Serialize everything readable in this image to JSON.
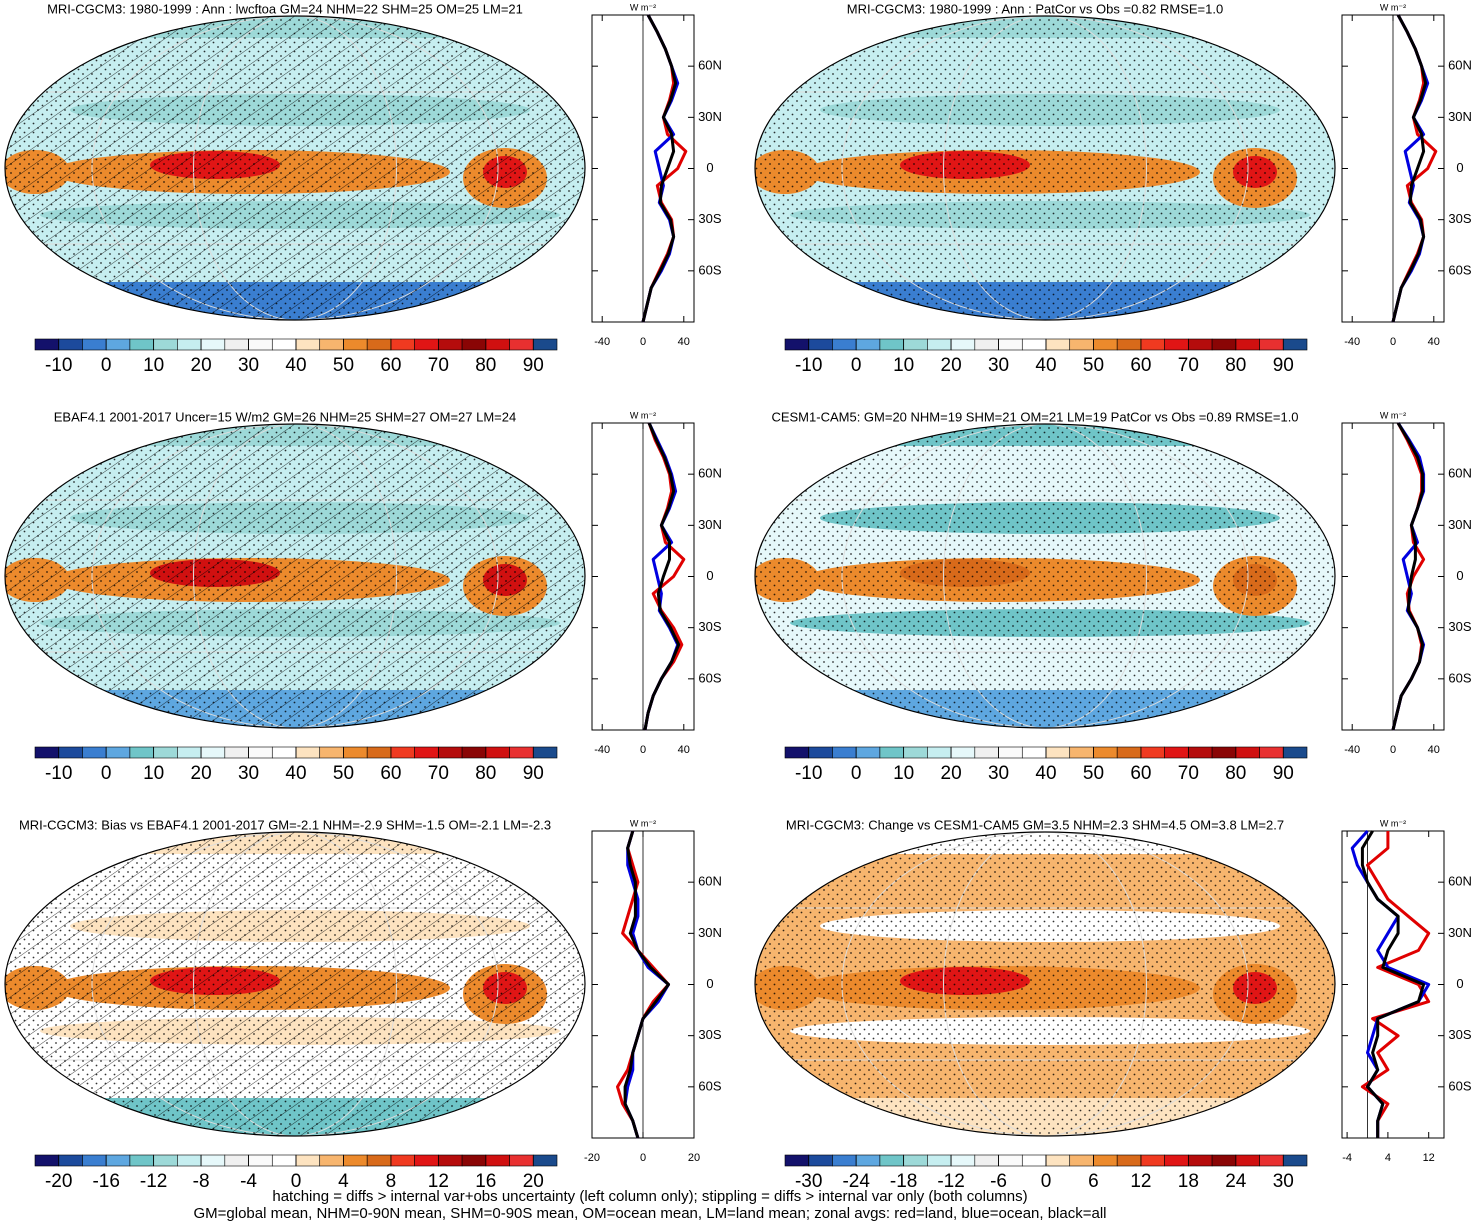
{
  "chart_data": [
    {
      "type": "map-zonal",
      "title": "MRI-CGCM3: 1980-1999 : Ann : lwcftoa GM=24 NHM=22 SHM=25 OM=25 LM=21",
      "unit": "W m⁻²",
      "colorbar": {
        "lim": [
          -15,
          95
        ],
        "ticks": [
          -10,
          0,
          10,
          20,
          30,
          40,
          50,
          60,
          70,
          80,
          90
        ],
        "colors": [
          "#13116b",
          "#1c4a9c",
          "#3a7ed0",
          "#5ea7e0",
          "#6fc5c8",
          "#9dd9d8",
          "#c6eef0",
          "#e6f8fa",
          "#f0f0f0",
          "#fafafa",
          "#ffffff",
          "#fde3c0",
          "#f7b56e",
          "#ec8a2c",
          "#d86a1a",
          "#f03a20",
          "#e01515",
          "#b50c0c",
          "#8a0505",
          "#d01010",
          "#e83030",
          "#1a4a8c"
        ]
      },
      "zonal": {
        "lat": [
          -90,
          -80,
          -70,
          -60,
          -50,
          -40,
          -30,
          -20,
          -10,
          0,
          10,
          20,
          30,
          40,
          50,
          60,
          70,
          80,
          90
        ],
        "xlim": [
          -50,
          50
        ],
        "xticks": [
          -40,
          0,
          40
        ],
        "ylim": [
          -90,
          90
        ],
        "yticks": [
          {
            "value": 60,
            "label": "60N"
          },
          {
            "value": 30,
            "label": "30N"
          },
          0,
          {
            "value": -30,
            "label": "30S"
          },
          {
            "value": -60,
            "label": "60S"
          }
        ],
        "series": [
          {
            "color": "#e00000",
            "values": [
              0,
              4,
              8,
              16,
              24,
              30,
              28,
              18,
              14,
              34,
              42,
              24,
              20,
              26,
              30,
              28,
              22,
              14,
              5
            ]
          },
          {
            "color": "#0000e0",
            "values": [
              0,
              4,
              8,
              18,
              26,
              30,
              26,
              16,
              20,
              16,
              12,
              30,
              20,
              28,
              34,
              28,
              22,
              14,
              5
            ]
          },
          {
            "color": "#000000",
            "values": [
              0,
              4,
              8,
              17,
              25,
              30,
              27,
              17,
              18,
              24,
              30,
              28,
              20,
              27,
              32,
              28,
              22,
              14,
              5
            ]
          }
        ]
      }
    },
    {
      "type": "map-zonal",
      "title": "MRI-CGCM3: 1980-1999 : Ann : PatCor vs Obs =0.82 RMSE=1.0",
      "unit": "W m⁻²",
      "colorbar": {
        "lim": [
          -15,
          95
        ],
        "ticks": [
          -10,
          0,
          10,
          20,
          30,
          40,
          50,
          60,
          70,
          80,
          90
        ],
        "colors": [
          "#13116b",
          "#1c4a9c",
          "#3a7ed0",
          "#5ea7e0",
          "#6fc5c8",
          "#9dd9d8",
          "#c6eef0",
          "#e6f8fa",
          "#f0f0f0",
          "#fafafa",
          "#ffffff",
          "#fde3c0",
          "#f7b56e",
          "#ec8a2c",
          "#d86a1a",
          "#f03a20",
          "#e01515",
          "#b50c0c",
          "#8a0505",
          "#d01010",
          "#e83030",
          "#1a4a8c"
        ]
      },
      "zonal": {
        "lat": [
          -90,
          -80,
          -70,
          -60,
          -50,
          -40,
          -30,
          -20,
          -10,
          0,
          10,
          20,
          30,
          40,
          50,
          60,
          70,
          80,
          90
        ],
        "xlim": [
          -50,
          50
        ],
        "xticks": [
          -40,
          0,
          40
        ],
        "ylim": [
          -90,
          90
        ],
        "yticks": [
          {
            "value": 60,
            "label": "60N"
          },
          {
            "value": 30,
            "label": "30N"
          },
          0,
          {
            "value": -30,
            "label": "30S"
          },
          {
            "value": -60,
            "label": "60S"
          }
        ],
        "series": [
          {
            "color": "#e00000",
            "values": [
              0,
              4,
              8,
              16,
              24,
              30,
              28,
              18,
              14,
              34,
              42,
              24,
              20,
              26,
              30,
              28,
              22,
              14,
              5
            ]
          },
          {
            "color": "#0000e0",
            "values": [
              0,
              4,
              8,
              18,
              26,
              30,
              26,
              16,
              20,
              16,
              12,
              30,
              20,
              28,
              34,
              28,
              22,
              14,
              5
            ]
          },
          {
            "color": "#000000",
            "values": [
              0,
              4,
              8,
              17,
              25,
              30,
              27,
              17,
              18,
              24,
              30,
              28,
              20,
              27,
              32,
              28,
              22,
              14,
              5
            ]
          }
        ]
      }
    },
    {
      "type": "map-zonal",
      "title": "EBAF4.1 2001-2017 Uncer=15 W/m2 GM=26 NHM=25 SHM=27 OM=27 LM=24",
      "unit": "W m⁻²",
      "colorbar": {
        "lim": [
          -15,
          95
        ],
        "ticks": [
          -10,
          0,
          10,
          20,
          30,
          40,
          50,
          60,
          70,
          80,
          90
        ],
        "colors": [
          "#13116b",
          "#1c4a9c",
          "#3a7ed0",
          "#5ea7e0",
          "#6fc5c8",
          "#9dd9d8",
          "#c6eef0",
          "#e6f8fa",
          "#f0f0f0",
          "#fafafa",
          "#ffffff",
          "#fde3c0",
          "#f7b56e",
          "#ec8a2c",
          "#d86a1a",
          "#f03a20",
          "#e01515",
          "#b50c0c",
          "#8a0505",
          "#d01010",
          "#e83030",
          "#1a4a8c"
        ]
      },
      "zonal": {
        "lat": [
          -90,
          -80,
          -70,
          -60,
          -50,
          -40,
          -30,
          -20,
          -10,
          0,
          10,
          20,
          30,
          40,
          50,
          60,
          70,
          80,
          90
        ],
        "xlim": [
          -50,
          50
        ],
        "xticks": [
          -40,
          0,
          40
        ],
        "ylim": [
          -90,
          90
        ],
        "yticks": [
          {
            "value": 60,
            "label": "60N"
          },
          {
            "value": 30,
            "label": "30N"
          },
          0,
          {
            "value": -30,
            "label": "30S"
          },
          {
            "value": -60,
            "label": "60S"
          }
        ],
        "series": [
          {
            "color": "#e00000",
            "values": [
              2,
              5,
              10,
              18,
              30,
              38,
              30,
              18,
              10,
              30,
              40,
              22,
              18,
              24,
              28,
              26,
              20,
              12,
              6
            ]
          },
          {
            "color": "#0000e0",
            "values": [
              2,
              5,
              10,
              18,
              28,
              34,
              26,
              16,
              18,
              14,
              10,
              28,
              18,
              26,
              32,
              28,
              22,
              14,
              6
            ]
          },
          {
            "color": "#000000",
            "values": [
              2,
              5,
              10,
              18,
              28,
              35,
              27,
              17,
              15,
              20,
              26,
              26,
              18,
              25,
              30,
              27,
              21,
              13,
              6
            ]
          }
        ]
      }
    },
    {
      "type": "map-zonal",
      "title": "CESM1-CAM5: GM=20 NHM=19 SHM=21 OM=21 LM=19 PatCor vs Obs =0.89 RMSE=1.0",
      "unit": "W m⁻²",
      "colorbar": {
        "lim": [
          -15,
          95
        ],
        "ticks": [
          -10,
          0,
          10,
          20,
          30,
          40,
          50,
          60,
          70,
          80,
          90
        ],
        "colors": [
          "#13116b",
          "#1c4a9c",
          "#3a7ed0",
          "#5ea7e0",
          "#6fc5c8",
          "#9dd9d8",
          "#c6eef0",
          "#e6f8fa",
          "#f0f0f0",
          "#fafafa",
          "#ffffff",
          "#fde3c0",
          "#f7b56e",
          "#ec8a2c",
          "#d86a1a",
          "#f03a20",
          "#e01515",
          "#b50c0c",
          "#8a0505",
          "#d01010",
          "#e83030",
          "#1a4a8c"
        ]
      },
      "zonal": {
        "lat": [
          -90,
          -80,
          -70,
          -60,
          -50,
          -40,
          -30,
          -20,
          -10,
          0,
          10,
          20,
          30,
          40,
          50,
          60,
          70,
          80,
          90
        ],
        "xlim": [
          -50,
          50
        ],
        "xticks": [
          -40,
          0,
          40
        ],
        "ylim": [
          -90,
          90
        ],
        "yticks": [
          {
            "value": 60,
            "label": "60N"
          },
          {
            "value": 30,
            "label": "30N"
          },
          0,
          {
            "value": -30,
            "label": "30S"
          },
          {
            "value": -60,
            "label": "60S"
          }
        ],
        "series": [
          {
            "color": "#e00000",
            "values": [
              0,
              4,
              8,
              18,
              26,
              28,
              24,
              16,
              14,
              20,
              30,
              20,
              18,
              24,
              28,
              28,
              22,
              14,
              5
            ]
          },
          {
            "color": "#0000e0",
            "values": [
              0,
              4,
              8,
              18,
              26,
              30,
              24,
              14,
              18,
              14,
              10,
              24,
              18,
              24,
              30,
              30,
              26,
              16,
              5
            ]
          },
          {
            "color": "#000000",
            "values": [
              0,
              4,
              8,
              18,
              26,
              29,
              24,
              15,
              16,
              18,
              22,
              22,
              18,
              24,
              29,
              29,
              24,
              15,
              5
            ]
          }
        ]
      }
    },
    {
      "type": "map-zonal",
      "title": "MRI-CGCM3: Bias vs EBAF4.1 2001-2017 GM=-2.1 NHM=-2.9 SHM=-1.5 OM=-2.1 LM=-2.3",
      "unit": "W m⁻²",
      "colorbar": {
        "lim": [
          -22,
          22
        ],
        "ticks": [
          -20,
          -16,
          -12,
          -8,
          -4,
          0,
          4,
          8,
          12,
          16,
          20
        ],
        "colors": [
          "#13116b",
          "#1c4a9c",
          "#3a7ed0",
          "#5ea7e0",
          "#6fc5c8",
          "#9dd9d8",
          "#c6eef0",
          "#e6f8fa",
          "#f0f0f0",
          "#fafafa",
          "#ffffff",
          "#fde3c0",
          "#f7b56e",
          "#ec8a2c",
          "#d86a1a",
          "#f03a20",
          "#e01515",
          "#b50c0c",
          "#8a0505",
          "#d01010",
          "#e83030",
          "#1a4a8c"
        ]
      },
      "zonal": {
        "lat": [
          -90,
          -80,
          -70,
          -60,
          -50,
          -40,
          -30,
          -20,
          -10,
          0,
          10,
          20,
          30,
          40,
          50,
          60,
          70,
          80,
          90
        ],
        "xlim": [
          -20,
          20
        ],
        "xticks": [
          -20,
          0,
          20
        ],
        "ylim": [
          -90,
          90
        ],
        "yticks": [
          {
            "value": 60,
            "label": "60N"
          },
          {
            "value": 30,
            "label": "30N"
          },
          0,
          {
            "value": -30,
            "label": "30S"
          },
          {
            "value": -60,
            "label": "60S"
          }
        ],
        "series": [
          {
            "color": "#e00000",
            "values": [
              -2,
              -4,
              -8,
              -10,
              -6,
              -4,
              -2,
              0,
              4,
              10,
              4,
              -2,
              -8,
              -6,
              -4,
              -2,
              -4,
              -6,
              -4
            ]
          },
          {
            "color": "#0000e0",
            "values": [
              -2,
              -4,
              -7,
              -6,
              -4,
              -4,
              -2,
              0,
              6,
              10,
              2,
              -2,
              -4,
              -2,
              -2,
              -4,
              -6,
              -6,
              -4
            ]
          },
          {
            "color": "#000000",
            "values": [
              -2,
              -4,
              -7,
              -7,
              -5,
              -4,
              -2,
              0,
              5,
              10,
              3,
              -2,
              -5,
              -3,
              -3,
              -3,
              -5,
              -6,
              -4
            ]
          }
        ]
      }
    },
    {
      "type": "map-zonal",
      "title": "MRI-CGCM3: Change vs CESM1-CAM5 GM=3.5 NHM=2.3 SHM=4.5 OM=3.8 LM=2.7",
      "unit": "W m⁻²",
      "colorbar": {
        "lim": [
          -33,
          33
        ],
        "ticks": [
          -30,
          -24,
          -18,
          -12,
          -6,
          0,
          6,
          12,
          18,
          24,
          30
        ],
        "colors": [
          "#13116b",
          "#1c4a9c",
          "#3a7ed0",
          "#5ea7e0",
          "#6fc5c8",
          "#9dd9d8",
          "#c6eef0",
          "#e6f8fa",
          "#f0f0f0",
          "#fafafa",
          "#ffffff",
          "#fde3c0",
          "#f7b56e",
          "#ec8a2c",
          "#d86a1a",
          "#f03a20",
          "#e01515",
          "#b50c0c",
          "#8a0505",
          "#d01010",
          "#e83030",
          "#1a4a8c"
        ]
      },
      "zonal": {
        "lat": [
          -90,
          -80,
          -70,
          -60,
          -50,
          -40,
          -30,
          -20,
          -10,
          0,
          10,
          20,
          30,
          40,
          50,
          60,
          70,
          80,
          90
        ],
        "xlim": [
          -5,
          15
        ],
        "xticks": [
          -4,
          4,
          12
        ],
        "ylim": [
          -90,
          90
        ],
        "yticks": [
          {
            "value": 60,
            "label": "60N"
          },
          {
            "value": 30,
            "label": "30N"
          },
          0,
          {
            "value": -30,
            "label": "30S"
          },
          {
            "value": -60,
            "label": "60S"
          }
        ],
        "series": [
          {
            "color": "#e00000",
            "values": [
              2,
              2,
              4,
              -1,
              4,
              2,
              6,
              1,
              12,
              10,
              2,
              10,
              12,
              8,
              4,
              2,
              0,
              4,
              4
            ]
          },
          {
            "color": "#0000e0",
            "values": [
              2,
              2,
              3,
              0,
              2,
              0,
              1,
              2,
              10,
              12,
              4,
              2,
              4,
              6,
              2,
              0,
              -2,
              -3,
              0
            ]
          },
          {
            "color": "#000000",
            "values": [
              2,
              2,
              3,
              0,
              2,
              1,
              2,
              2,
              10,
              11,
              3,
              4,
              6,
              6,
              2,
              0,
              -1,
              -1,
              1
            ]
          }
        ]
      }
    }
  ],
  "footer": [
    "hatching = diffs > internal var+obs uncertainty (left column only); stippling = diffs > internal var only (both columns)",
    "GM=global mean, NHM=0-90N mean, SHM=0-90S mean, OM=ocean mean, LM=land mean; zonal avgs: red=land, blue=ocean, black=all"
  ]
}
